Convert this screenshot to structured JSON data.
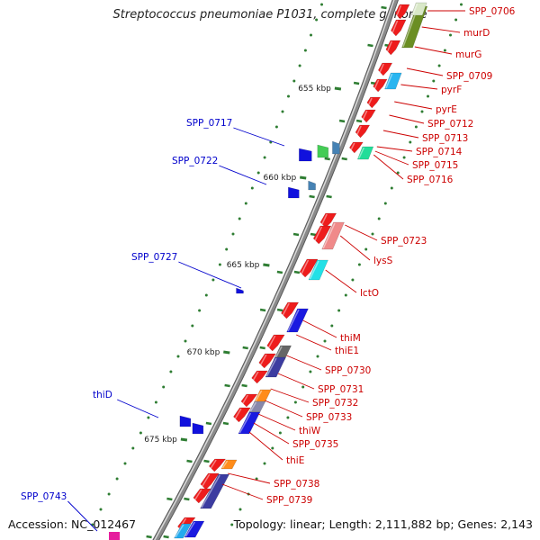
{
  "title": "Streptococcus pneumoniae P1031, complete genome",
  "footer": {
    "accession": "Accession: NC_012467",
    "summary": "Topology: linear; Length: 2,111,882 bp; Genes: 2,143"
  },
  "scale_labels": [
    "655 kbp",
    "660 kbp",
    "665 kbp",
    "670 kbp",
    "675 kbp"
  ],
  "genes_right": [
    "SPP_0706",
    "murD",
    "murG",
    "SPP_0709",
    "pyrF",
    "pyrE",
    "SPP_0712",
    "SPP_0713",
    "SPP_0714",
    "SPP_0715",
    "SPP_0716",
    "SPP_0723",
    "lysS",
    "lctO",
    "thiM",
    "thiE1",
    "SPP_0730",
    "SPP_0731",
    "SPP_0732",
    "SPP_0733",
    "thiW",
    "SPP_0735",
    "thiE",
    "SPP_0738",
    "SPP_0739"
  ],
  "genes_left": [
    "SPP_0717",
    "SPP_0722",
    "SPP_0727",
    "thiD",
    "SPP_0743"
  ],
  "colors": {
    "forward_label": "#cc0000",
    "reverse_label": "#0000cc",
    "backbone": "#8a8a8a",
    "tick": "#2e7d32",
    "gene_red": "#ee1c1c",
    "gene_blue": "#1111dd"
  }
}
